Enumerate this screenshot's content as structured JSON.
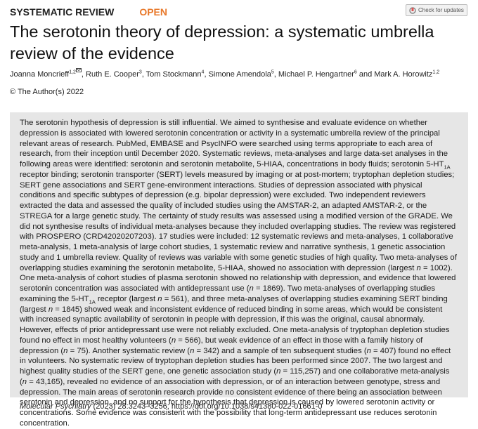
{
  "header": {
    "section": "SYSTEMATIC REVIEW",
    "access": "OPEN",
    "update_button": "Check for updates"
  },
  "title": "The serotonin theory of depression: a systematic umbrella review of the evidence",
  "authors": [
    {
      "name": "Joanna Moncrieff",
      "affiliation": "1,2"
    },
    {
      "name": ", Ruth E. Cooper",
      "affiliation": "3"
    },
    {
      "name": ", Tom Stockmann",
      "affiliation": "4"
    },
    {
      "name": ", Simone Amendola",
      "affiliation": "5"
    },
    {
      "name": ", Michael P. Hengartner",
      "affiliation": "6"
    },
    {
      "name": " and Mark A. Horowitz",
      "affiliation": "1,2"
    }
  ],
  "copyright": "© The Author(s) 2022",
  "abstract": [
    "The serotonin hypothesis of depression is still influential. We aimed to synthesise and evaluate evidence on whether depression is associated with lowered serotonin concentration or activity in a systematic umbrella review of the principal relevant areas of research. PubMed, EMBASE and PsycINFO were searched using terms appropriate to each area of research, from their inception until December 2020. Systematic reviews, meta-analyses and large data-set analyses in the following areas were identified: serotonin and serotonin metabolite, 5-HIAA, concentrations in body fluids; serotonin 5-HT",
    "1A",
    " receptor binding; serotonin transporter (SERT) levels measured by imaging or at post-mortem; tryptophan depletion studies; SERT gene associations and SERT gene-environment interactions. Studies of depression associated with physical conditions and specific subtypes of depression (e.g. bipolar depression) were excluded. Two independent reviewers extracted the data and assessed the quality of included studies using the AMSTAR-2, an adapted AMSTAR-2, or the STREGA for a large genetic study. The certainty of study results was assessed using a modified version of the GRADE. We did not synthesise results of individual meta-analyses because they included overlapping studies. The review was registered with PROSPERO (CRD42020207203). 17 studies were included: 12 systematic reviews and meta-analyses, 1 collaborative meta-analysis, 1 meta-analysis of large cohort studies, 1 systematic review and narrative synthesis, 1 genetic association study and 1 umbrella review. Quality of reviews was variable with some genetic studies of high quality. Two meta-analyses of overlapping studies examining the serotonin metabolite, 5-HIAA, showed no association with depression (largest ",
    "n",
    " = 1002). One meta-analysis of cohort studies of plasma serotonin showed no relationship with depression, and evidence that lowered serotonin concentration was associated with antidepressant use (",
    "n",
    " = 1869). Two meta-analyses of overlapping studies examining the 5-HT",
    "1A",
    " receptor (largest ",
    "n",
    " = 561), and three meta-analyses of overlapping studies examining SERT binding (largest ",
    "n",
    " = 1845) showed weak and inconsistent evidence of reduced binding in some areas, which would be consistent with increased synaptic availability of serotonin in people with depression, if this was the original, causal abnormaly. However, effects of prior antidepressant use were not reliably excluded. One meta-analysis of tryptophan depletion studies found no effect in most healthy volunteers (",
    "n",
    " = 566), but weak evidence of an effect in those with a family history of depression (",
    "n",
    " = 75). Another systematic review (",
    "n",
    " = 342) and a sample of ten subsequent studies (",
    "n",
    " = 407) found no effect in volunteers. No systematic review of tryptophan depletion studies has been performed since 2007. The two largest and highest quality studies of the SERT gene, one genetic association study (",
    "n",
    " = 115,257) and one collaborative meta-analysis (",
    "n",
    " = 43,165), revealed no evidence of an association with depression, or of an interaction between genotype, stress and depression. The main areas of serotonin research provide no consistent evidence of there being an association between serotonin and depression, and no support for the hypothesis that depression is caused by lowered serotonin activity or concentrations. Some evidence was consistent with the possibility that long-term antidepressant use reduces serotonin concentration."
  ],
  "citation": {
    "journal": "Molecular Psychiatry",
    "details": " (2023) 28:3243–3256; https://doi.org/10.1038/s41380-022-01661-0"
  }
}
